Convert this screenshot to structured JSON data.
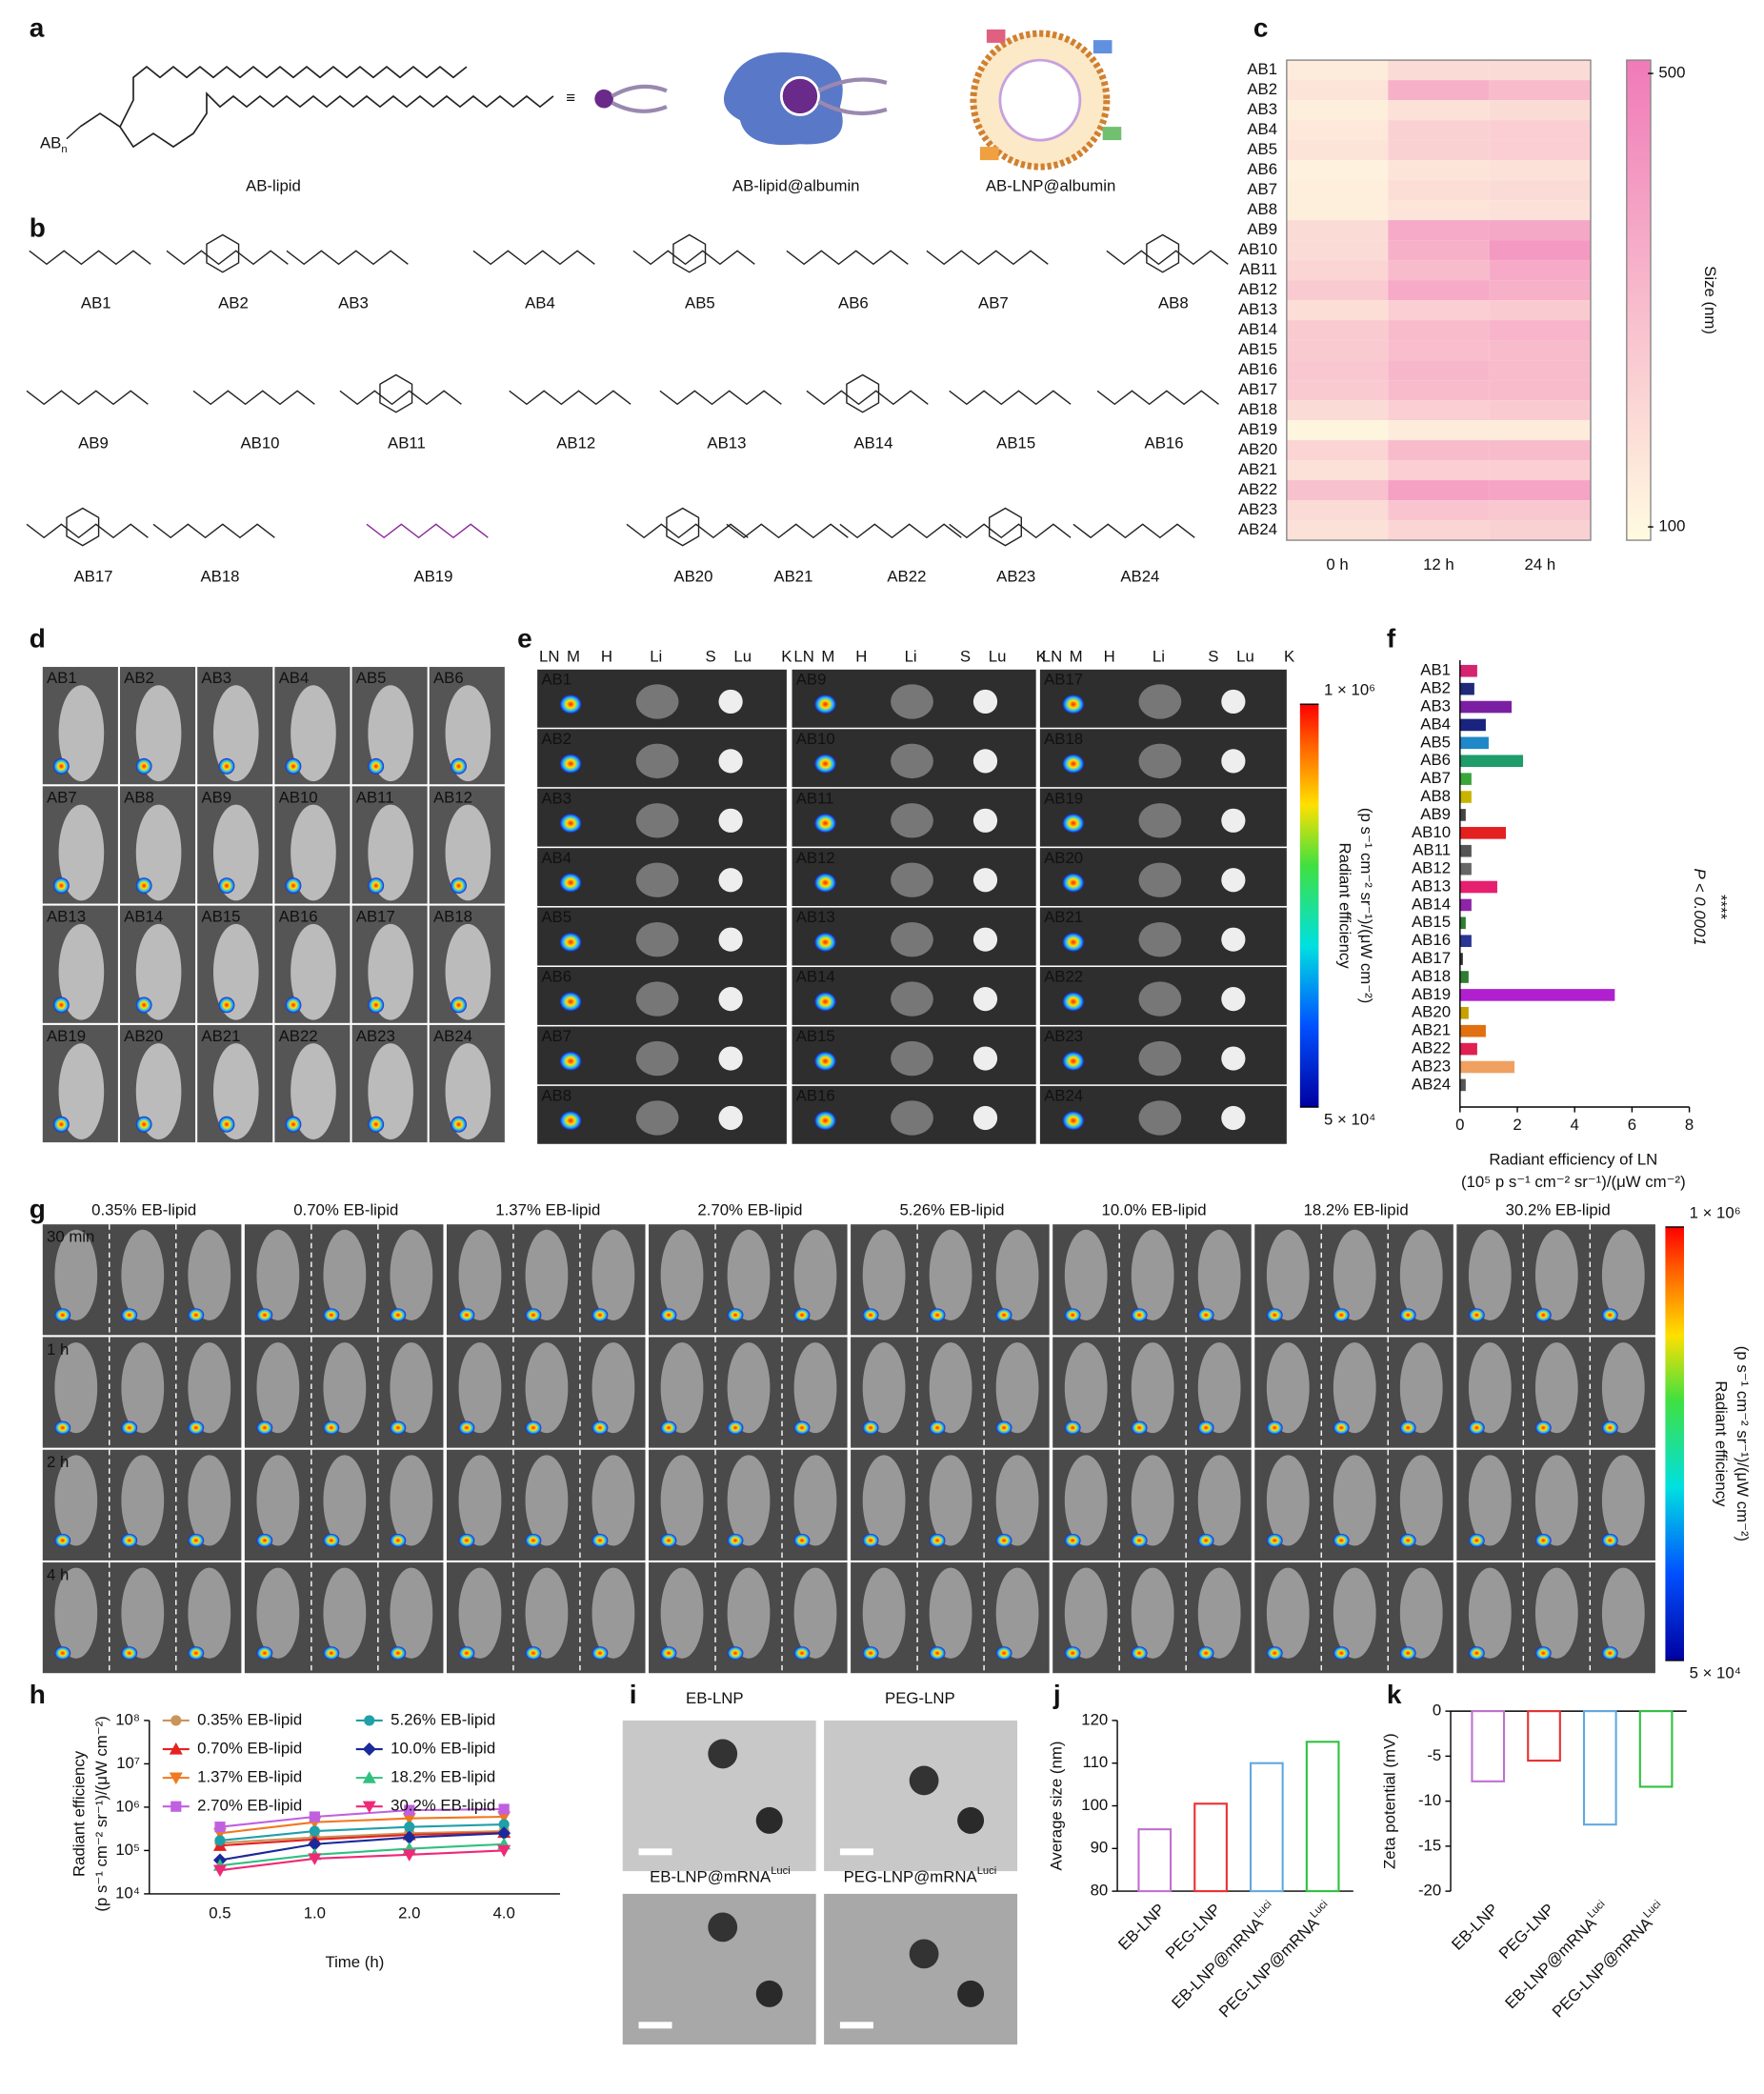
{
  "panel_letters": [
    "a",
    "b",
    "c",
    "d",
    "e",
    "f",
    "g",
    "h",
    "i",
    "j",
    "k"
  ],
  "panel_a": {
    "head_group": "AB",
    "head_subscript": "n",
    "equiv": "≡",
    "labels": [
      "AB-lipid",
      "AB-lipid@albumin",
      "AB-LNP@albumin"
    ]
  },
  "panel_b": {
    "compounds": [
      "AB1",
      "AB2",
      "AB3",
      "AB4",
      "AB5",
      "AB6",
      "AB7",
      "AB8",
      "AB9",
      "AB10",
      "AB11",
      "AB12",
      "AB13",
      "AB14",
      "AB15",
      "AB16",
      "AB17",
      "AB18",
      "AB19",
      "AB20",
      "AB21",
      "AB22",
      "AB23",
      "AB24"
    ]
  },
  "panel_d": {
    "labels": [
      "AB1",
      "AB2",
      "AB3",
      "AB4",
      "AB5",
      "AB6",
      "AB7",
      "AB8",
      "AB9",
      "AB10",
      "AB11",
      "AB12",
      "AB13",
      "AB14",
      "AB15",
      "AB16",
      "AB17",
      "AB18",
      "AB19",
      "AB20",
      "AB21",
      "AB22",
      "AB23",
      "AB24"
    ]
  },
  "panel_e": {
    "organs": [
      "LN",
      "M",
      "H",
      "Li",
      "S",
      "Lu",
      "K"
    ],
    "labels": [
      "AB1",
      "AB2",
      "AB3",
      "AB4",
      "AB5",
      "AB6",
      "AB7",
      "AB8",
      "AB9",
      "AB10",
      "AB11",
      "AB12",
      "AB13",
      "AB14",
      "AB15",
      "AB16",
      "AB17",
      "AB18",
      "AB19",
      "AB20",
      "AB21",
      "AB22",
      "AB23",
      "AB24"
    ],
    "colorbar_title": [
      "Radiant efficiency",
      "(p s⁻¹ cm⁻² sr⁻¹)/(μW cm⁻²)"
    ],
    "colorbar_ticks": [
      {
        "value": 1000000,
        "label": "1 × 10⁶"
      },
      {
        "value": 50000,
        "label": "5 × 10⁴"
      }
    ]
  },
  "panel_g": {
    "groups": [
      "0.35% EB-lipid",
      "0.70% EB-lipid",
      "1.37% EB-lipid",
      "2.70% EB-lipid",
      "5.26% EB-lipid",
      "10.0% EB-lipid",
      "18.2% EB-lipid",
      "30.2% EB-lipid"
    ],
    "timepoints": [
      "30 min",
      "1 h",
      "2 h",
      "4 h"
    ],
    "colorbar_title": [
      "Radiant efficiency",
      "(p s⁻¹ cm⁻² sr⁻¹)/(μW cm⁻²)"
    ],
    "colorbar_ticks": [
      {
        "value": 1000000,
        "label": "1 × 10⁶"
      },
      {
        "value": 50000,
        "label": "5 × 10⁴"
      }
    ]
  },
  "panel_i": {
    "titles": [
      "EB-LNP",
      "PEG-LNP",
      "EB-LNP@mRNA",
      "PEG-LNP@mRNA"
    ],
    "superscripts": [
      null,
      null,
      "Luci",
      "Luci"
    ]
  },
  "chart_data": [
    {
      "type": "heatmap",
      "x_categories": [
        "0 h",
        "12 h",
        "24 h"
      ],
      "y_categories": [
        "AB1",
        "AB2",
        "AB3",
        "AB4",
        "AB5",
        "AB6",
        "AB7",
        "AB8",
        "AB9",
        "AB10",
        "AB11",
        "AB12",
        "AB13",
        "AB14",
        "AB15",
        "AB16",
        "AB17",
        "AB18",
        "AB19",
        "AB20",
        "AB21",
        "AB22",
        "AB23",
        "AB24"
      ],
      "values": [
        [
          150,
          200,
          200
        ],
        [
          170,
          330,
          300
        ],
        [
          140,
          180,
          200
        ],
        [
          160,
          230,
          240
        ],
        [
          170,
          230,
          240
        ],
        [
          130,
          170,
          180
        ],
        [
          140,
          190,
          200
        ],
        [
          140,
          170,
          180
        ],
        [
          200,
          350,
          360
        ],
        [
          200,
          330,
          400
        ],
        [
          220,
          300,
          350
        ],
        [
          250,
          350,
          330
        ],
        [
          190,
          240,
          250
        ],
        [
          250,
          300,
          320
        ],
        [
          250,
          290,
          300
        ],
        [
          260,
          310,
          300
        ],
        [
          250,
          300,
          300
        ],
        [
          200,
          240,
          250
        ],
        [
          120,
          150,
          150
        ],
        [
          220,
          300,
          300
        ],
        [
          180,
          240,
          240
        ],
        [
          280,
          380,
          370
        ],
        [
          200,
          270,
          260
        ],
        [
          180,
          220,
          230
        ]
      ],
      "colorbar_label": "Size (nm)",
      "clim": [
        100,
        500
      ],
      "cticks": [
        100,
        500
      ],
      "low_color": "#fffbe0",
      "high_color": "#f07ab8"
    },
    {
      "type": "hbar",
      "categories": [
        "AB1",
        "AB2",
        "AB3",
        "AB4",
        "AB5",
        "AB6",
        "AB7",
        "AB8",
        "AB9",
        "AB10",
        "AB11",
        "AB12",
        "AB13",
        "AB14",
        "AB15",
        "AB16",
        "AB17",
        "AB18",
        "AB19",
        "AB20",
        "AB21",
        "AB22",
        "AB23",
        "AB24"
      ],
      "values": [
        0.6,
        0.5,
        1.8,
        0.9,
        1.0,
        2.2,
        0.4,
        0.4,
        0.2,
        1.6,
        0.4,
        0.4,
        1.3,
        0.4,
        0.2,
        0.4,
        0.1,
        0.3,
        5.4,
        0.3,
        0.9,
        0.6,
        1.9,
        0.2
      ],
      "colors": [
        "#d6246e",
        "#1f2a7a",
        "#7b1fa2",
        "#1a237e",
        "#1e88c8",
        "#1e9c6a",
        "#3aa63a",
        "#c8b400",
        "#444444",
        "#e52020",
        "#555555",
        "#666666",
        "#e6206e",
        "#8e24aa",
        "#2e7d32",
        "#283593",
        "#333333",
        "#2e7d32",
        "#b020d0",
        "#c8a000",
        "#e07010",
        "#e02050",
        "#f0a060",
        "#555555"
      ],
      "xlim": [
        0,
        8
      ],
      "xticks": [
        0,
        2,
        4,
        6,
        8
      ],
      "xlabel": [
        "Radiant efficiency of LN",
        "(10⁵ p s⁻¹ cm⁻² sr⁻¹)/(μW cm⁻²)"
      ],
      "annotations": [
        "****",
        "P < 0.0001"
      ]
    },
    {
      "type": "line",
      "categories": [
        "0.5",
        "1.0",
        "2.0",
        "4.0"
      ],
      "log_y": true,
      "ylim": [
        10000,
        100000000
      ],
      "yticks": [
        {
          "value": 10000,
          "label": "10⁴"
        },
        {
          "value": 100000,
          "label": "10⁵"
        },
        {
          "value": 1000000,
          "label": "10⁶"
        },
        {
          "value": 10000000,
          "label": "10⁷"
        },
        {
          "value": 100000000,
          "label": "10⁸"
        }
      ],
      "xlabel": "Time (h)",
      "ylabel": [
        "Radiant efficiency",
        "(p s⁻¹ cm⁻² sr⁻¹)/(μW cm⁻²)"
      ],
      "series": [
        {
          "name": "0.35% EB-lipid",
          "color": "#c8965a",
          "marker": "circle",
          "values": [
            150000,
            200000,
            250000,
            280000
          ]
        },
        {
          "name": "0.70% EB-lipid",
          "color": "#e52222",
          "marker": "triangle",
          "values": [
            130000,
            180000,
            230000,
            260000
          ]
        },
        {
          "name": "1.37% EB-lipid",
          "color": "#f07820",
          "marker": "triangle-down",
          "values": [
            250000,
            450000,
            550000,
            600000
          ]
        },
        {
          "name": "2.70% EB-lipid",
          "color": "#c060e0",
          "marker": "square",
          "values": [
            350000,
            600000,
            850000,
            900000
          ]
        },
        {
          "name": "5.26% EB-lipid",
          "color": "#20a0a8",
          "marker": "circle",
          "values": [
            170000,
            280000,
            350000,
            400000
          ]
        },
        {
          "name": "10.0% EB-lipid",
          "color": "#1a2a9a",
          "marker": "diamond",
          "values": [
            60000,
            140000,
            200000,
            250000
          ]
        },
        {
          "name": "18.2% EB-lipid",
          "color": "#30c080",
          "marker": "triangle",
          "values": [
            45000,
            80000,
            110000,
            140000
          ]
        },
        {
          "name": "30.2% EB-lipid",
          "color": "#f02878",
          "marker": "triangle-down",
          "values": [
            35000,
            65000,
            80000,
            100000
          ]
        }
      ]
    },
    {
      "type": "bar",
      "categories": [
        "EB-LNP",
        "PEG-LNP",
        "EB-LNP@mRNA",
        "PEG-LNP@mRNA"
      ],
      "category_superscripts": [
        null,
        null,
        "Luci",
        "Luci"
      ],
      "values": [
        94.5,
        100.5,
        110,
        115
      ],
      "colors": [
        "#c070d0",
        "#e83030",
        "#60a8e0",
        "#30c040"
      ],
      "ylim": [
        80,
        120
      ],
      "yticks": [
        80,
        90,
        100,
        110,
        120
      ],
      "ylabel": "Average size (nm)"
    },
    {
      "type": "bar",
      "categories": [
        "EB-LNP",
        "PEG-LNP",
        "EB-LNP@mRNA",
        "PEG-LNP@mRNA"
      ],
      "category_superscripts": [
        null,
        null,
        "Luci",
        "Luci"
      ],
      "values": [
        -7.8,
        -5.5,
        -12.6,
        -8.4
      ],
      "colors": [
        "#c070d0",
        "#e83030",
        "#60a8e0",
        "#30c040"
      ],
      "ylim": [
        -20,
        0
      ],
      "yticks": [
        0,
        -5,
        -10,
        -15,
        -20
      ],
      "ylabel": "Zeta potential  (mV)"
    }
  ]
}
